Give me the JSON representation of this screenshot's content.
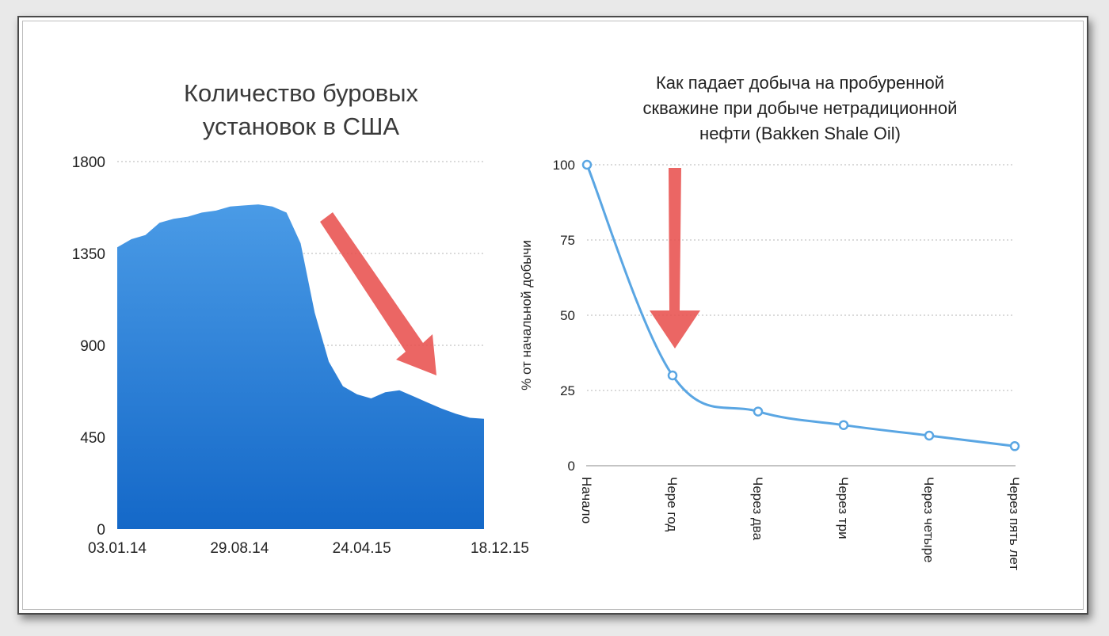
{
  "chart_data": [
    {
      "type": "area",
      "title": "Количество буровых установок в США",
      "title_lines": [
        "Количество буровых",
        "установок в США"
      ],
      "xlabel": "",
      "ylabel": "",
      "ylim": [
        0,
        1800
      ],
      "yticks": [
        "0",
        "450",
        "900",
        "1350",
        "1800"
      ],
      "xticks": [
        "03.01.14",
        "29.08.14",
        "24.04.15",
        "18.12.15"
      ],
      "x": [
        "03.01.14",
        "31.01.14",
        "28.02.14",
        "28.03.14",
        "25.04.14",
        "23.05.14",
        "20.06.14",
        "18.07.14",
        "15.08.14",
        "12.09.14",
        "10.10.14",
        "07.11.14",
        "05.12.14",
        "02.01.15",
        "30.01.15",
        "27.02.15",
        "27.03.15",
        "24.04.15",
        "22.05.15",
        "19.06.15",
        "17.07.15",
        "14.08.15",
        "11.09.15",
        "09.10.15",
        "06.11.15",
        "04.12.15",
        "18.12.15"
      ],
      "values": [
        1380,
        1420,
        1440,
        1500,
        1520,
        1530,
        1550,
        1560,
        1580,
        1585,
        1590,
        1580,
        1550,
        1400,
        1060,
        820,
        700,
        660,
        640,
        670,
        680,
        650,
        620,
        590,
        565,
        545,
        540
      ],
      "fill_top": "#4a9be6",
      "fill_bottom": "#1468c8",
      "grid": true
    },
    {
      "type": "line",
      "title": "Как падает добыча на пробуренной скважине при добыче нетрадиционной нефти (Bakken Shale Oil)",
      "title_lines": [
        "Как падает добыча на пробуренной",
        "скважине при добыче нетрадиционной",
        "нефти (Bakken Shale Oil)"
      ],
      "xlabel": "",
      "ylabel": "% от начальной добычи",
      "ylim": [
        0,
        100
      ],
      "yticks": [
        "0",
        "25",
        "50",
        "75",
        "100"
      ],
      "categories": [
        "Начало",
        "Чере год",
        "Через два",
        "Через три",
        "Через четыре",
        "Через пять лет"
      ],
      "values": [
        100,
        30,
        18,
        13.5,
        10,
        6.5
      ],
      "line_color": "#5aa6e3",
      "grid": true
    }
  ],
  "annotations": {
    "arrow_color": "#e8514f",
    "arrows": [
      "decline-arrow",
      "down-arrow"
    ]
  }
}
